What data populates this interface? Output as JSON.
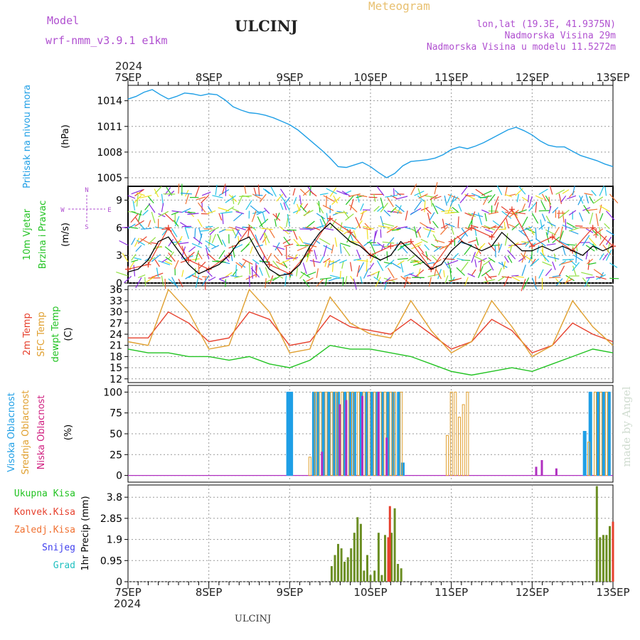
{
  "header": {
    "model_label": "Model",
    "model_name": "wrf-nmm_v3.9.1 e1km",
    "station": "ULCINJ",
    "title": "Meteogram",
    "lonlat": "lon,lat (19.3E, 41.9375N)",
    "elevation": "Nadmorska Visina 29m",
    "model_elevation": "Nadmorska Visina u modelu 11.5272m",
    "footer_station": "ULCINJ",
    "watermark": "made by Angel"
  },
  "colors": {
    "pressure": "#1f9fe6",
    "wind_speed": "#000000",
    "wind_gust": "#e6402d",
    "temp_2m": "#e6402d",
    "temp_sfc": "#e0a030",
    "dewpoint": "#22c322",
    "cloud_high": "#1f9fe6",
    "cloud_mid": "#e0a030",
    "cloud_low": "#b030c0",
    "precip_total": "#6b8e23",
    "precip_conv": "#e6402d",
    "label_total": "#22c322",
    "label_conv": "#e6402d",
    "label_strat": "#f07030",
    "label_snow": "#4040ee",
    "label_grad": "#20c0c0",
    "header_purple": "#b050d0",
    "title_gold": "#e8c070",
    "watermark": "#d9e6d9"
  },
  "time_axis": {
    "year_top": "2024",
    "year_bottom": "2024",
    "ticks": [
      "7SEP",
      "8SEP",
      "9SEP",
      "10SEP",
      "11SEP",
      "12SEP",
      "13SEP"
    ]
  },
  "panels": {
    "pressure": {
      "label": "Pritisak na nivou mora",
      "unit": "(hPa)",
      "ticks": [
        "1014",
        "1011",
        "1008",
        "1005"
      ]
    },
    "wind": {
      "label1": "10m Vjetar",
      "label2": "Brzina i Pravac",
      "unit": "(m/s)",
      "ticks": [
        "9",
        "6",
        "3",
        "0"
      ],
      "compass": {
        "n": "N",
        "s": "S",
        "e": "E",
        "w": "W"
      }
    },
    "temperature": {
      "label_2m": "2m Temp",
      "label_sfc": "SFC Temp",
      "label_dewpt": "dewpt Temp",
      "unit": "(C)",
      "ticks": [
        "36",
        "33",
        "30",
        "27",
        "24",
        "21",
        "18",
        "15",
        "12"
      ]
    },
    "clouds": {
      "label_high": "Visoka Oblacnost",
      "label_mid": "Srednja Oblacnost",
      "label_low": "Niska Oblacnost",
      "unit": "(%)",
      "ticks": [
        "100",
        "75",
        "50",
        "25",
        "0"
      ]
    },
    "precip": {
      "label_total": "Ukupna Kisa",
      "label_conv": "Konvek.Kisa",
      "label_strat": "Zaledj.Kisa",
      "label_snow": "Snijeg",
      "label_grad": "Grad",
      "axis_label": "1hr Precip (mm)",
      "ticks": [
        "3.8",
        "2.85",
        "1.9",
        "0.95",
        "0"
      ]
    }
  },
  "chart_data": [
    {
      "type": "line",
      "name": "pressure",
      "x": [
        0,
        0.1,
        0.2,
        0.3,
        0.4,
        0.5,
        0.6,
        0.7,
        0.8,
        0.9,
        1.0,
        1.1,
        1.2,
        1.3,
        1.4,
        1.5,
        1.6,
        1.7,
        1.8,
        1.9,
        2.0,
        2.1,
        2.2,
        2.3,
        2.4,
        2.5,
        2.6,
        2.7,
        2.8,
        2.9,
        3.0,
        3.1,
        3.2,
        3.3,
        3.4,
        3.5,
        3.6,
        3.7,
        3.8,
        3.9,
        4.0,
        4.1,
        4.2,
        4.3,
        4.4,
        4.5,
        4.6,
        4.7,
        4.8,
        4.9,
        5.0,
        5.1,
        5.2,
        5.3,
        5.4,
        5.5,
        5.6,
        5.7,
        5.8,
        5.9,
        6.0
      ],
      "y": [
        1014.2,
        1014.5,
        1015.0,
        1015.3,
        1014.7,
        1014.2,
        1014.5,
        1014.9,
        1014.8,
        1014.6,
        1014.8,
        1014.7,
        1014.1,
        1013.3,
        1012.9,
        1012.6,
        1012.5,
        1012.3,
        1012.0,
        1011.6,
        1011.2,
        1010.6,
        1009.8,
        1009.0,
        1008.2,
        1007.3,
        1006.3,
        1006.2,
        1006.5,
        1006.8,
        1006.3,
        1005.6,
        1005.0,
        1005.5,
        1006.4,
        1006.9,
        1007.0,
        1007.1,
        1007.3,
        1007.7,
        1008.3,
        1008.6,
        1008.4,
        1008.7,
        1009.1,
        1009.6,
        1010.1,
        1010.6,
        1010.9,
        1010.5,
        1010.0,
        1009.3,
        1008.8,
        1008.6,
        1008.6,
        1008.1,
        1007.6,
        1007.3,
        1007.0,
        1006.6,
        1006.3
      ],
      "ylim": [
        1004,
        1015.8
      ]
    },
    {
      "type": "line",
      "name": "wind_speed",
      "x": [
        0,
        0.125,
        0.25,
        0.375,
        0.5,
        0.625,
        0.75,
        0.875,
        1.0,
        1.125,
        1.25,
        1.375,
        1.5,
        1.625,
        1.75,
        1.875,
        2.0,
        2.125,
        2.25,
        2.375,
        2.5,
        2.625,
        2.75,
        2.875,
        3.0,
        3.125,
        3.25,
        3.375,
        3.5,
        3.625,
        3.75,
        3.875,
        4.0,
        4.125,
        4.25,
        4.375,
        4.5,
        4.625,
        4.75,
        4.875,
        5.0,
        5.125,
        5.25,
        5.375,
        5.5,
        5.625,
        5.75,
        5.875,
        6.0
      ],
      "y": [
        1.2,
        1.5,
        2.5,
        4.5,
        5.0,
        3.5,
        2.0,
        1.0,
        1.5,
        2.0,
        3.0,
        4.5,
        5.0,
        3.0,
        1.5,
        0.8,
        1.0,
        2.0,
        4.0,
        5.5,
        6.5,
        5.5,
        4.5,
        4.0,
        3.0,
        2.5,
        3.0,
        4.5,
        3.5,
        2.5,
        1.5,
        2.0,
        3.5,
        4.5,
        4.0,
        3.5,
        4.0,
        5.5,
        4.5,
        3.5,
        3.5,
        4.0,
        3.5,
        4.0,
        3.5,
        3.0,
        4.0,
        3.5,
        4.0
      ],
      "ylim": [
        0,
        10.5
      ]
    },
    {
      "type": "line",
      "name": "wind_gust",
      "x": [
        0,
        0.25,
        0.5,
        0.75,
        1.0,
        1.25,
        1.5,
        1.75,
        2.0,
        2.25,
        2.5,
        2.75,
        3.0,
        3.25,
        3.5,
        3.75,
        4.0,
        4.25,
        4.5,
        4.75,
        5.0,
        5.25,
        5.5,
        5.75,
        6.0
      ],
      "y": [
        1.5,
        2.0,
        6.0,
        2.5,
        1.5,
        3.0,
        6.0,
        2.0,
        1.0,
        3.5,
        7.0,
        5.5,
        3.0,
        4.0,
        4.5,
        1.5,
        4.5,
        6.0,
        5.0,
        8.0,
        4.0,
        5.0,
        3.5,
        6.0,
        4.0
      ],
      "ylim": [
        0,
        10.5
      ]
    },
    {
      "type": "line",
      "name": "temperature",
      "x": [
        0,
        0.25,
        0.5,
        0.75,
        1.0,
        1.25,
        1.5,
        1.75,
        2.0,
        2.25,
        2.5,
        2.75,
        3.0,
        3.25,
        3.5,
        3.75,
        4.0,
        4.25,
        4.5,
        4.75,
        5.0,
        5.25,
        5.5,
        5.75,
        6.0
      ],
      "series": [
        {
          "name": "2m Temp",
          "values": [
            23,
            23,
            30,
            27,
            22,
            23,
            30,
            28,
            21,
            22,
            29,
            26,
            25,
            24,
            28,
            24,
            20,
            22,
            28,
            25,
            19,
            21,
            27,
            24,
            22
          ]
        },
        {
          "name": "SFC Temp",
          "values": [
            22,
            21,
            36,
            30,
            20,
            21,
            36,
            30,
            19,
            20,
            34,
            27,
            24,
            23,
            33,
            25,
            19,
            22,
            33,
            26,
            18,
            21,
            33,
            26,
            21
          ]
        },
        {
          "name": "dewpt Temp",
          "values": [
            20,
            19,
            19,
            18,
            18,
            17,
            18,
            16,
            15,
            17,
            21,
            20,
            20,
            19,
            18,
            16,
            14,
            13,
            14,
            15,
            14,
            16,
            18,
            20,
            19
          ]
        }
      ],
      "ylim": [
        11,
        37
      ]
    },
    {
      "type": "bar",
      "name": "clouds",
      "series": [
        {
          "name": "Visoka Oblacnost",
          "x": [
            1.98,
            2.02,
            2.3,
            2.35,
            2.42,
            2.48,
            2.55,
            2.6,
            2.68,
            2.75,
            2.8,
            2.88,
            2.95,
            3.02,
            3.08,
            3.15,
            3.22,
            3.28,
            3.35,
            3.4,
            5.65,
            5.72,
            5.82,
            5.88,
            5.95
          ],
          "values": [
            100,
            100,
            100,
            100,
            100,
            100,
            100,
            100,
            100,
            100,
            100,
            100,
            100,
            100,
            100,
            100,
            100,
            100,
            100,
            15,
            53,
            100,
            100,
            100,
            100
          ]
        },
        {
          "name": "Srednja Oblacnost",
          "x": [
            2.25,
            2.32,
            2.38,
            2.45,
            2.52,
            2.58,
            2.65,
            2.72,
            2.78,
            2.85,
            2.92,
            2.98,
            3.05,
            3.12,
            3.18,
            3.25,
            3.3,
            3.38,
            3.95,
            4.0,
            4.05,
            4.1,
            4.15,
            4.2,
            5.7,
            5.78,
            5.85,
            5.92
          ],
          "values": [
            22,
            100,
            100,
            100,
            100,
            100,
            100,
            100,
            100,
            100,
            100,
            100,
            100,
            100,
            100,
            100,
            100,
            100,
            48,
            100,
            100,
            70,
            85,
            100,
            40,
            100,
            100,
            100
          ]
        },
        {
          "name": "Niska Oblacnost",
          "x": [
            2.4,
            2.62,
            2.7,
            2.9,
            3.1,
            3.2,
            5.05,
            5.12,
            5.3
          ],
          "values": [
            28,
            85,
            90,
            95,
            100,
            45,
            10,
            18,
            8
          ]
        }
      ],
      "ylim": [
        0,
        100
      ]
    },
    {
      "type": "bar",
      "name": "precip_1hr",
      "series": [
        {
          "name": "Ukupna Kisa",
          "x": [
            2.52,
            2.56,
            2.6,
            2.64,
            2.68,
            2.72,
            2.76,
            2.8,
            2.84,
            2.88,
            2.92,
            2.96,
            3.0,
            3.05,
            3.1,
            3.14,
            3.18,
            3.22,
            3.26,
            3.3,
            3.34,
            3.38,
            5.8,
            5.84,
            5.88,
            5.92,
            5.96,
            6.0
          ],
          "values": [
            0.7,
            1.2,
            1.7,
            1.5,
            0.9,
            1.1,
            1.5,
            2.2,
            2.9,
            2.6,
            0.5,
            1.2,
            0.3,
            0.5,
            2.2,
            0.3,
            2.1,
            0.5,
            2.2,
            3.3,
            0.8,
            0.6,
            4.3,
            2.0,
            2.1,
            2.1,
            2.5,
            2.7
          ]
        },
        {
          "name": "Konvek.Kisa",
          "x": [
            3.24,
            3.22,
            6.0
          ],
          "values": [
            3.4,
            2.0,
            2.7
          ]
        }
      ],
      "ylim": [
        0,
        4.35
      ]
    }
  ]
}
